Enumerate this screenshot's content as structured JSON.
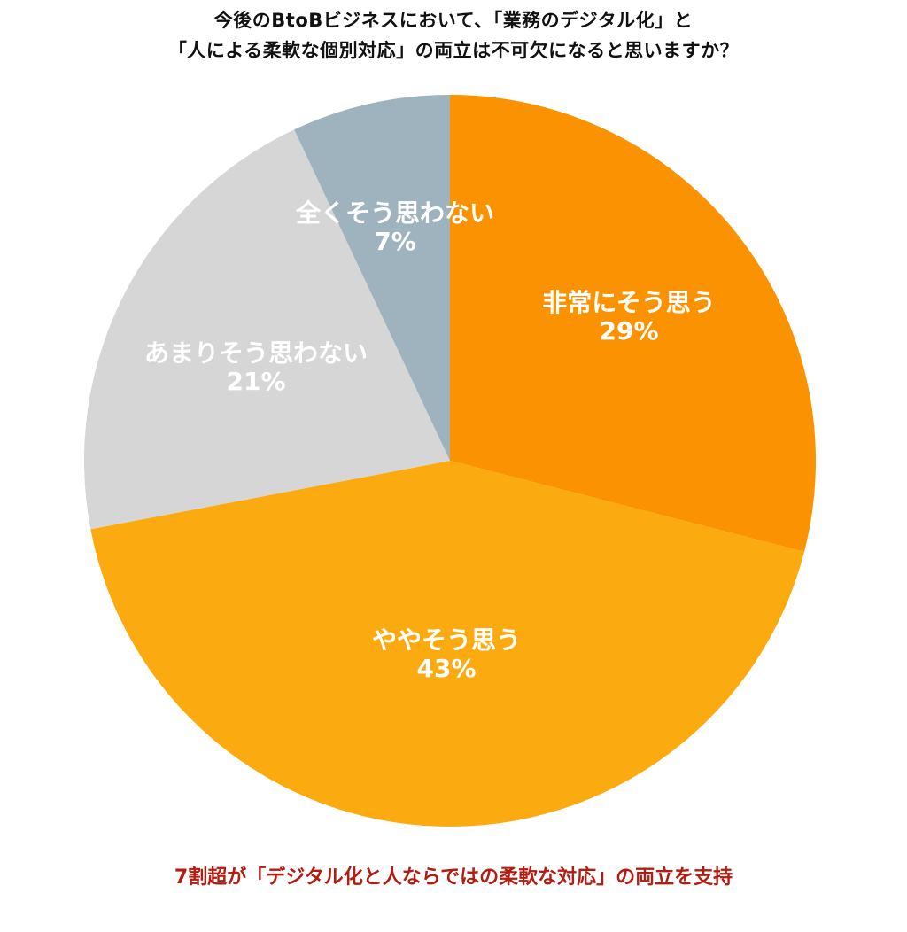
{
  "title": {
    "line1": "今後のBtoBビジネスにおいて、「業務のデジタル化」と",
    "line2": "「人による柔軟な個別対応」の両立は不可欠になると思いますか？"
  },
  "footer": "7割超が「デジタル化と人ならではの柔軟な対応」の両立を支持",
  "colors": {
    "very_agree": "#fb9201",
    "somewhat_agree": "#fbaa0f",
    "not_much": "#d6d6d6",
    "not_at_all": "#9fb3bf",
    "footer_text": "#b31c10"
  },
  "labels": {
    "very_agree": {
      "name": "非常にそう思う",
      "pct": "29%"
    },
    "somewhat_agree": {
      "name": "ややそう思う",
      "pct": "43%"
    },
    "not_much": {
      "name": "あまりそう思わない",
      "pct": "21%"
    },
    "not_at_all": {
      "name": "全くそう思わない",
      "pct": "7%"
    }
  },
  "chart_data": {
    "type": "pie",
    "title": "今後のBtoBビジネスにおいて、「業務のデジタル化」と「人による柔軟な個別対応」の両立は不可欠になると思いますか？",
    "categories": [
      "非常にそう思う",
      "ややそう思う",
      "あまりそう思わない",
      "全くそう思わない"
    ],
    "values": [
      29,
      43,
      21,
      7
    ],
    "unit": "%",
    "start_angle": "12 o'clock",
    "direction": "clockwise",
    "colors": [
      "#fb9201",
      "#fbaa0f",
      "#d6d6d6",
      "#9fb3bf"
    ],
    "annotation": "7割超が「デジタル化と人ならではの柔軟な対応」の両立を支持",
    "legend": "none (labels inside slices)"
  }
}
